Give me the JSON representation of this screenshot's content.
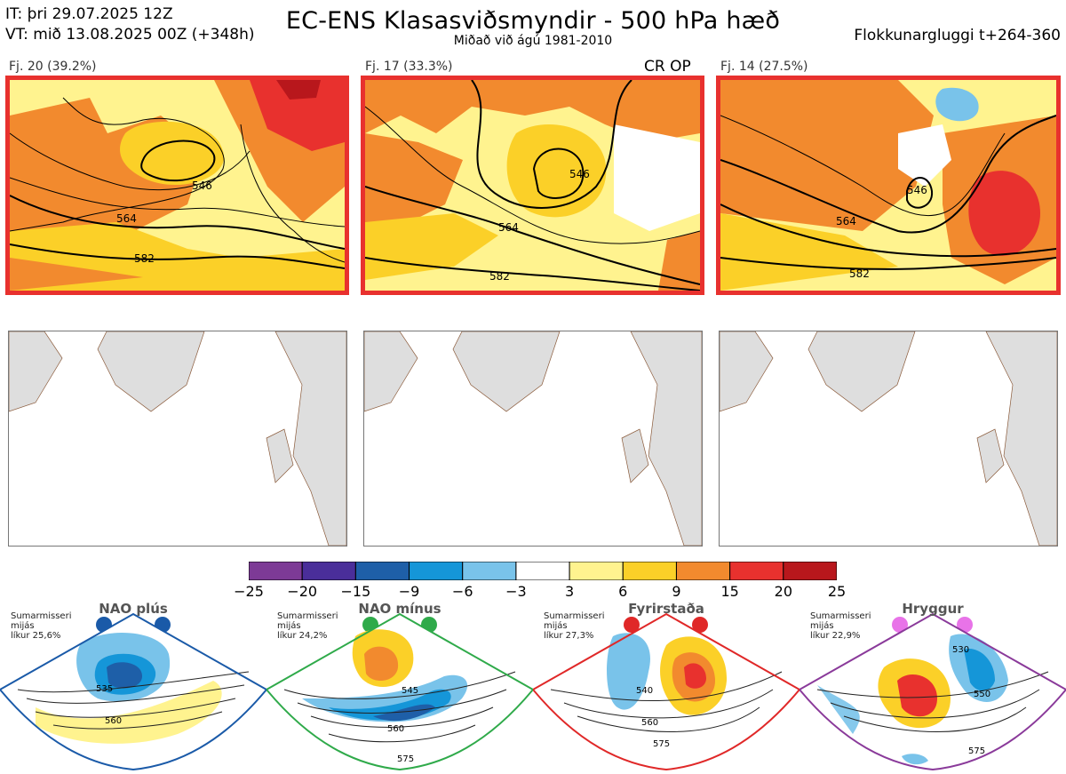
{
  "header": {
    "it": "IT: þri 29.07.2025 12Z",
    "vt": "VT: mið 13.08.2025 00Z  (+348h)",
    "title": "EC-ENS Klasasviðsmyndir - 500 hPa hæð",
    "subtitle": "Miðað við ágú 1981-2010",
    "window": "Flokkunargluggi t+264-360"
  },
  "clusters": [
    {
      "label": "Fj. 20 (39.2%)",
      "contours": [
        "546",
        "564",
        "582"
      ],
      "extra": ""
    },
    {
      "label": "Fj. 17 (33.3%)",
      "contours": [
        "546",
        "564",
        "582"
      ],
      "extra": "CR OP"
    },
    {
      "label": "Fj. 14 (27.5%)",
      "contours": [
        "546",
        "564",
        "582"
      ],
      "extra": ""
    }
  ],
  "colorbar": {
    "ticks": [
      "−25",
      "−20",
      "−15",
      "−9",
      "−6",
      "−3",
      "3",
      "6",
      "9",
      "15",
      "20",
      "25"
    ],
    "colors": [
      "#7d3a96",
      "#4a2e9a",
      "#1e5fa8",
      "#1596d8",
      "#79c3ea",
      "#ffffff",
      "#fff38f",
      "#fbd028",
      "#f28a2e",
      "#e8312e",
      "#b8171c"
    ]
  },
  "regimes": [
    {
      "title": "NAO plús",
      "info": [
        "Sumarmisseri",
        "mijás",
        "líkur 25,6%"
      ],
      "color": "#1a5aa8",
      "contours": [
        "535",
        "560"
      ]
    },
    {
      "title": "NAO mínus",
      "info": [
        "Sumarmisseri",
        "mijás",
        "líkur 24,2%"
      ],
      "color": "#2faa4a",
      "contours": [
        "545",
        "560",
        "575"
      ]
    },
    {
      "title": "Fyrirstaða",
      "info": [
        "Sumarmisseri",
        "mijás",
        "líkur 27,3%"
      ],
      "color": "#e02828",
      "contours": [
        "540",
        "560",
        "575"
      ]
    },
    {
      "title": "Hryggur",
      "info": [
        "Sumarmisseri",
        "mijás",
        "líkur 22,9%"
      ],
      "color": "#8a3a9a",
      "contours": [
        "530",
        "550",
        "575"
      ]
    }
  ]
}
